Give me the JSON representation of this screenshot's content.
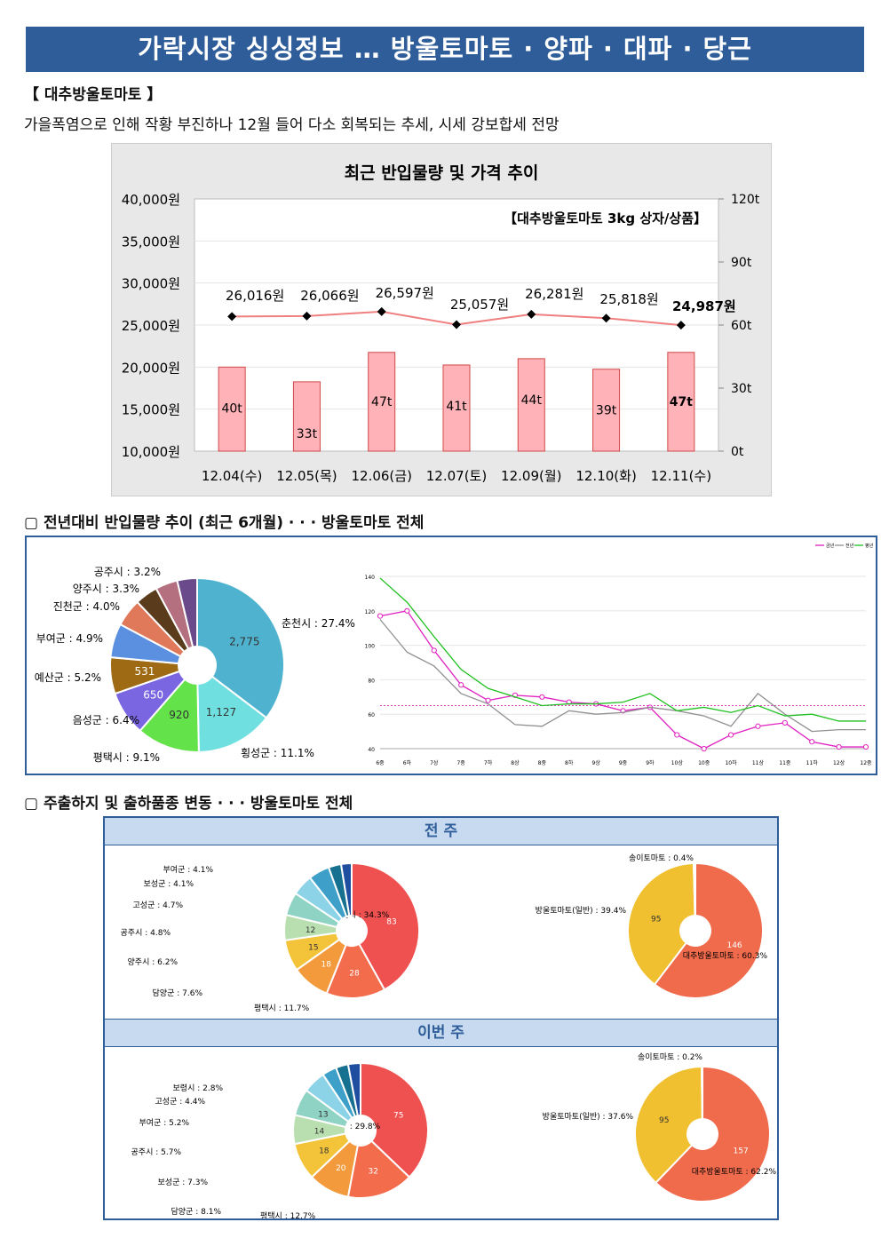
{
  "banner": {
    "title": "가락시장 싱싱정보 … 방울토마토 · 양파 · 대파 · 당근"
  },
  "section1": {
    "heading": "【 대추방울토마토 】",
    "desc": "가을폭염으로 인해 작황 부진하나 12월 들어 다소 회복되는 추세, 시세 강보합세 전망"
  },
  "section2": {
    "heading": "▢ 전년대비 반입물량 추이 (최근 6개월) · · · 방울토마토 전체"
  },
  "section3": {
    "heading": "▢ 주출하지 및 출하품종 변동 · · · 방울토마토 전체",
    "prev_week": "전 주",
    "this_week": "이번 주"
  },
  "chart_data": [
    {
      "type": "bar",
      "title": "최근 반입물량 및 가격 추이",
      "annotation": "【대추방울토마토 3kg 상자/상품】",
      "categories": [
        "12.04(수)",
        "12.05(목)",
        "12.06(금)",
        "12.07(토)",
        "12.09(월)",
        "12.10(화)",
        "12.11(수)"
      ],
      "series": [
        {
          "kind": "bar",
          "axis": "right",
          "values": [
            40,
            33,
            47,
            41,
            44,
            39,
            47
          ],
          "labels": [
            "40t",
            "33t",
            "47t",
            "41t",
            "44t",
            "39t",
            "47t"
          ],
          "color": "#ffb3b8"
        },
        {
          "kind": "line",
          "axis": "left",
          "values": [
            26016,
            26066,
            26597,
            25057,
            26281,
            25818,
            24987
          ],
          "labels": [
            "26,016원",
            "26,066원",
            "26,597원",
            "25,057원",
            "26,281원",
            "25,818원",
            "24,987원"
          ],
          "color": "#f08080"
        }
      ],
      "y_left": {
        "min": 10000,
        "max": 40000,
        "ticks": [
          "10,000원",
          "15,000원",
          "20,000원",
          "25,000원",
          "30,000원",
          "35,000원",
          "40,000원"
        ]
      },
      "y_right": {
        "min": 0,
        "max": 120,
        "ticks": [
          "0t",
          "30t",
          "60t",
          "90t",
          "120t"
        ]
      }
    },
    {
      "type": "pie",
      "slices": [
        {
          "label": "춘천시 : 27.4%",
          "value": 2775,
          "vlabel": "2,775",
          "color": "#4fb3cf"
        },
        {
          "label": "횡성군 : 11.1%",
          "value": 1127,
          "vlabel": "1,127",
          "color": "#6fdfe0"
        },
        {
          "label": "평택시 : 9.1%",
          "value": 920,
          "vlabel": "920",
          "color": "#63e24a"
        },
        {
          "label": "음성군 : 6.4%",
          "value": 650,
          "vlabel": "650",
          "color": "#7a66e0"
        },
        {
          "label": "예산군 : 5.2%",
          "value": 531,
          "vlabel": "531",
          "color": "#9e6a14"
        },
        {
          "label": "부여군 : 4.9%",
          "value": 496,
          "vlabel": "",
          "color": "#5b8fe0"
        },
        {
          "label": "진천군 : 4.0%",
          "value": 405,
          "vlabel": "",
          "color": "#e0785a"
        },
        {
          "label": "양주시 : 3.3%",
          "value": 334,
          "vlabel": "",
          "color": "#5a3c1c"
        },
        {
          "label": "공주시 : 3.2%",
          "value": 324,
          "vlabel": "",
          "color": "#b57080"
        },
        {
          "label": "",
          "value": 290,
          "vlabel": "",
          "color": "#6a4a8a"
        }
      ]
    },
    {
      "type": "line",
      "legend": [
        "금년",
        "전년",
        "평년"
      ],
      "legend_position": "top-right",
      "x": [
        "6중",
        "6하",
        "7상",
        "7중",
        "7하",
        "8상",
        "8중",
        "8하",
        "9상",
        "9중",
        "9하",
        "10상",
        "10중",
        "10하",
        "11상",
        "11중",
        "11하",
        "12상",
        "12중"
      ],
      "ylim": [
        40,
        140
      ],
      "yticks": [
        "40",
        "60",
        "80",
        "100",
        "120",
        "140"
      ],
      "series": [
        {
          "name": "금년",
          "color": "#e020c0",
          "values": [
            117,
            120,
            97,
            77,
            68,
            71,
            70,
            67,
            66,
            62,
            64,
            48,
            40,
            48,
            53,
            55,
            44,
            41,
            41
          ]
        },
        {
          "name": "전년",
          "color": "#909090",
          "values": [
            115,
            96,
            88,
            72,
            66,
            54,
            53,
            62,
            60,
            61,
            64,
            62,
            59,
            53,
            72,
            60,
            50,
            51,
            51
          ]
        },
        {
          "name": "평년",
          "color": "#20c020",
          "values": [
            139,
            125,
            105,
            86,
            75,
            70,
            65,
            66,
            66,
            67,
            72,
            62,
            64,
            61,
            65,
            59,
            60,
            56,
            56
          ]
        }
      ],
      "reference_line": 65
    },
    {
      "type": "pie",
      "panel": "전 주",
      "slices": [
        {
          "label": "춘천시 : 34.3%",
          "value": 83,
          "vlabel": "83",
          "color": "#ef5150"
        },
        {
          "label": "평택시 : 11.7%",
          "value": 28,
          "vlabel": "28",
          "color": "#f36c4c"
        },
        {
          "label": "담양군 : 7.6%",
          "value": 18,
          "vlabel": "18",
          "color": "#f29a3c"
        },
        {
          "label": "양주시 : 6.2%",
          "value": 15,
          "vlabel": "15",
          "color": "#f3c43a"
        },
        {
          "label": "공주시 : 4.8%",
          "value": 12,
          "vlabel": "12",
          "color": "#b9dfb0"
        },
        {
          "label": "고성군 : 4.7%",
          "value": 11,
          "vlabel": "",
          "color": "#8fd3c4"
        },
        {
          "label": "보성군 : 4.1%",
          "value": 10,
          "vlabel": "",
          "color": "#8dd3e8"
        },
        {
          "label": "부여군 : 4.1%",
          "value": 10,
          "vlabel": "",
          "color": "#3ea0c8"
        },
        {
          "label": "",
          "value": 6,
          "vlabel": "",
          "color": "#16708f"
        },
        {
          "label": "",
          "value": 5,
          "vlabel": "",
          "color": "#1f4ea0"
        }
      ]
    },
    {
      "type": "pie",
      "panel": "전 주",
      "slices": [
        {
          "label": "대추방울토마토 : 60.3%",
          "value": 146,
          "vlabel": "146",
          "color": "#f06a4c"
        },
        {
          "label": "방울토마토(일반) : 39.4%",
          "value": 95,
          "vlabel": "95",
          "color": "#f0c030"
        },
        {
          "label": "송이토마토 : 0.4%",
          "value": 1,
          "vlabel": "",
          "color": "#f0a030"
        }
      ]
    },
    {
      "type": "pie",
      "panel": "이번 주",
      "slices": [
        {
          "label": "춘천시 : 29.8%",
          "value": 75,
          "vlabel": "75",
          "color": "#ef5150"
        },
        {
          "label": "평택시 : 12.7%",
          "value": 32,
          "vlabel": "32",
          "color": "#f36c4c"
        },
        {
          "label": "담양군 : 8.1%",
          "value": 20,
          "vlabel": "20",
          "color": "#f29a3c"
        },
        {
          "label": "보성군 : 7.3%",
          "value": 18,
          "vlabel": "18",
          "color": "#f3c43a"
        },
        {
          "label": "공주시 : 5.7%",
          "value": 14,
          "vlabel": "14",
          "color": "#b9dfb0"
        },
        {
          "label": "부여군 : 5.2%",
          "value": 13,
          "vlabel": "13",
          "color": "#8fd3c4"
        },
        {
          "label": "고성군 : 4.4%",
          "value": 11,
          "vlabel": "",
          "color": "#8dd3e8"
        },
        {
          "label": "보령시 : 2.8%",
          "value": 7,
          "vlabel": "",
          "color": "#3ea0c8"
        },
        {
          "label": "",
          "value": 6,
          "vlabel": "",
          "color": "#16708f"
        },
        {
          "label": "",
          "value": 6,
          "vlabel": "",
          "color": "#1f4ea0"
        }
      ]
    },
    {
      "type": "pie",
      "panel": "이번 주",
      "slices": [
        {
          "label": "대추방울토마토 : 62.2%",
          "value": 157,
          "vlabel": "157",
          "color": "#f06a4c"
        },
        {
          "label": "방울토마토(일반) : 37.6%",
          "value": 95,
          "vlabel": "95",
          "color": "#f0c030"
        },
        {
          "label": "송이토마토 : 0.2%",
          "value": 0.5,
          "vlabel": "",
          "color": "#f0a030"
        }
      ]
    }
  ]
}
